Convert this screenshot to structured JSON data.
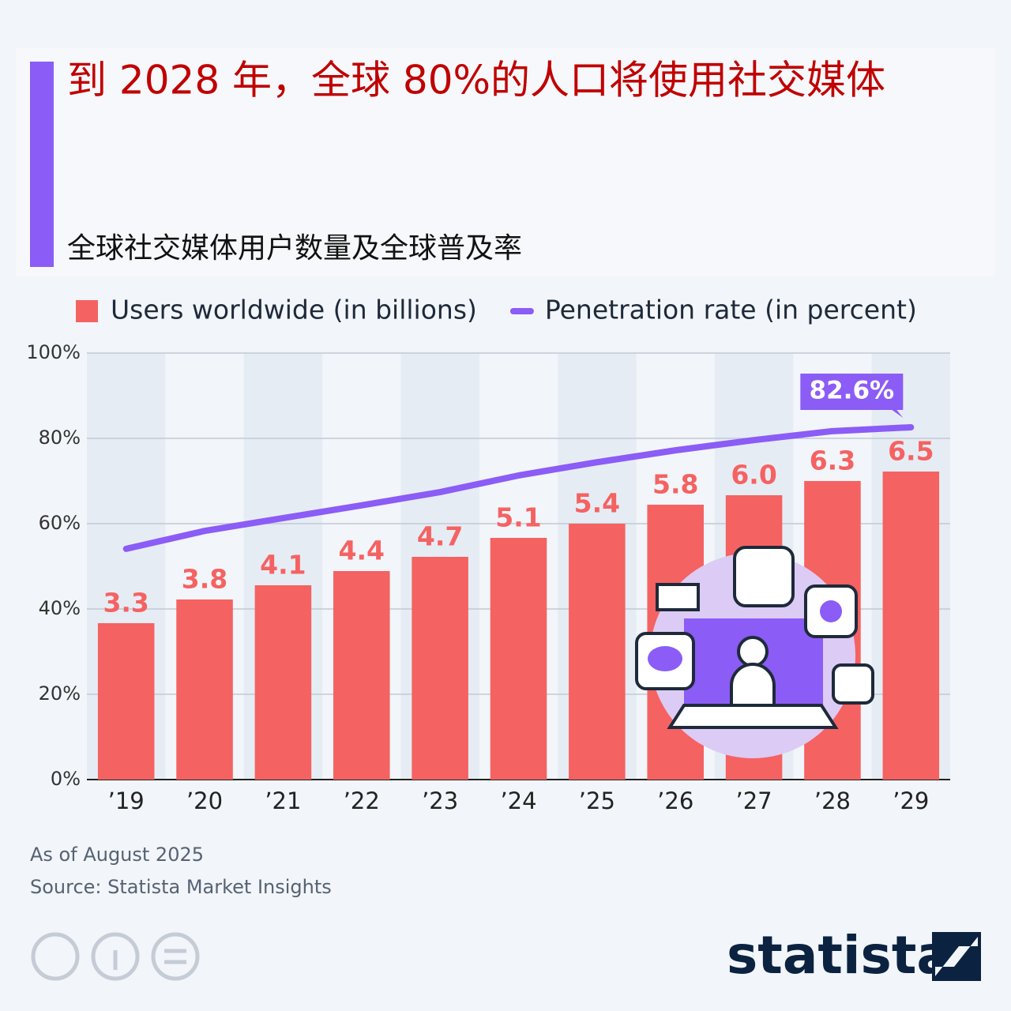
{
  "chart_data": {
    "type": "bar-line",
    "title": "到 2028 年，全球 80%的人口将使用社交媒体",
    "subtitle": "全球社交媒体用户数量及全球普及率",
    "categories": [
      "’19",
      "’20",
      "’21",
      "’22",
      "’23",
      "’24",
      "’25",
      "’26",
      "’27",
      "’28",
      "’29"
    ],
    "series": [
      {
        "name": "Users worldwide (in billions)",
        "type": "bar",
        "axis": "y2",
        "color": "#f56262",
        "values": [
          3.3,
          3.8,
          4.1,
          4.4,
          4.7,
          5.1,
          5.4,
          5.8,
          6.0,
          6.3,
          6.5
        ],
        "value_labels": [
          "3.3",
          "3.8",
          "4.1",
          "4.4",
          "4.7",
          "5.1",
          "5.4",
          "5.8",
          "6.0",
          "6.3",
          "6.5"
        ]
      },
      {
        "name": "Penetration rate (in percent)",
        "type": "line",
        "color": "#8b5cf6",
        "values": [
          54.1,
          58.3,
          61.3,
          64.3,
          67.4,
          71.3,
          74.4,
          77.2,
          79.6,
          81.7,
          82.6
        ],
        "value_labels": [
          null,
          null,
          null,
          null,
          null,
          null,
          null,
          null,
          null,
          null,
          "82.6%"
        ]
      }
    ],
    "ylim": [
      0,
      100
    ],
    "yticks": [
      {
        "value": 0,
        "label": "0%"
      },
      {
        "value": 20,
        "label": "20%"
      },
      {
        "value": 40,
        "label": "40%"
      },
      {
        "value": 60,
        "label": "60%"
      },
      {
        "value": 80,
        "label": "80%"
      },
      {
        "value": 100,
        "label": "100%"
      }
    ],
    "y2lim": [
      0,
      9
    ],
    "grid": true,
    "notes": "As of August 2025",
    "source": "Source: Statista Market Insights",
    "brand": "statista"
  }
}
